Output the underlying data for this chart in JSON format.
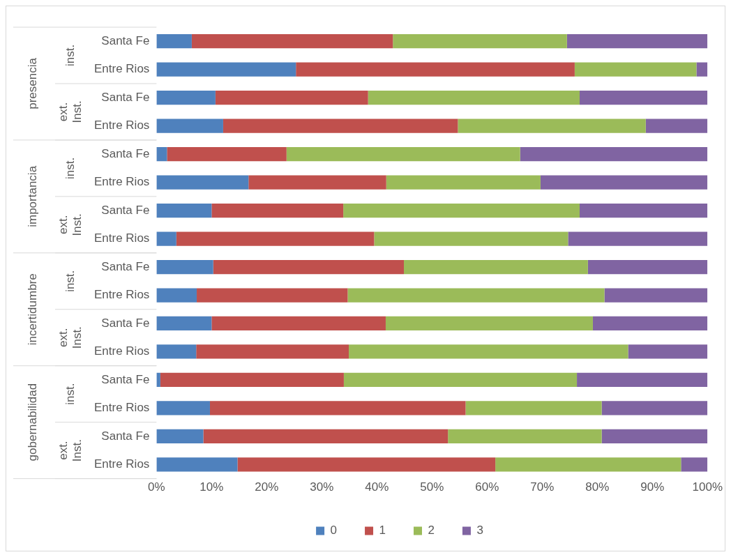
{
  "chart_data": {
    "type": "bar",
    "orientation": "horizontal",
    "stacked": true,
    "categories": [
      "Santa Fe",
      "Entre Rios",
      "Santa Fe",
      "Entre Rios",
      "Santa Fe",
      "Entre Rios",
      "Santa Fe",
      "Entre Rios",
      "Santa Fe",
      "Entre Rios",
      "Santa Fe",
      "Entre Rios",
      "Santa Fe",
      "Entre Rios",
      "Santa Fe",
      "Entre Rios"
    ],
    "annotations": [
      "inst.",
      "ext. Inst.",
      "inst.",
      "ext. Inst.",
      "inst.",
      "ext. Inst.",
      "inst.",
      "ext. Inst.",
      "presencia",
      "importancia",
      "incertidumbre",
      "gobernabilidad"
    ],
    "series": [
      {
        "name": "0",
        "color": "#4f81bd",
        "values": [
          6.4,
          25.3,
          10.7,
          12.1,
          1.9,
          16.7,
          10.0,
          3.6,
          10.3,
          7.3,
          10.0,
          7.2,
          0.7,
          9.7,
          8.5,
          14.7
        ]
      },
      {
        "name": "1",
        "color": "#c0504d",
        "values": [
          36.5,
          50.6,
          27.7,
          42.6,
          21.7,
          25.0,
          23.9,
          35.9,
          34.6,
          27.4,
          31.6,
          27.7,
          33.3,
          46.4,
          44.4,
          46.8
        ]
      },
      {
        "name": "2",
        "color": "#9bbb59",
        "values": [
          31.6,
          22.1,
          38.4,
          34.1,
          42.4,
          28.0,
          42.9,
          35.2,
          33.4,
          46.6,
          37.6,
          50.7,
          42.3,
          24.7,
          27.9,
          33.7
        ]
      },
      {
        "name": "3",
        "color": "#8064a2",
        "values": [
          25.5,
          2.0,
          23.2,
          11.2,
          34.0,
          30.3,
          23.2,
          25.3,
          21.7,
          18.7,
          20.8,
          14.4,
          23.7,
          19.2,
          19.2,
          4.8
        ]
      }
    ],
    "xlim": [
      0,
      100
    ],
    "xticks": [
      {
        "value": 0,
        "label": "0%"
      },
      {
        "value": 10,
        "label": "10%"
      },
      {
        "value": 20,
        "label": "20%"
      },
      {
        "value": 30,
        "label": "30%"
      },
      {
        "value": 40,
        "label": "40%"
      },
      {
        "value": 50,
        "label": "50%"
      },
      {
        "value": 60,
        "label": "60%"
      },
      {
        "value": 70,
        "label": "70%"
      },
      {
        "value": 80,
        "label": "80%"
      },
      {
        "value": 90,
        "label": "90%"
      },
      {
        "value": 100,
        "label": "100%"
      }
    ],
    "grid": false,
    "legend": "bottom"
  }
}
